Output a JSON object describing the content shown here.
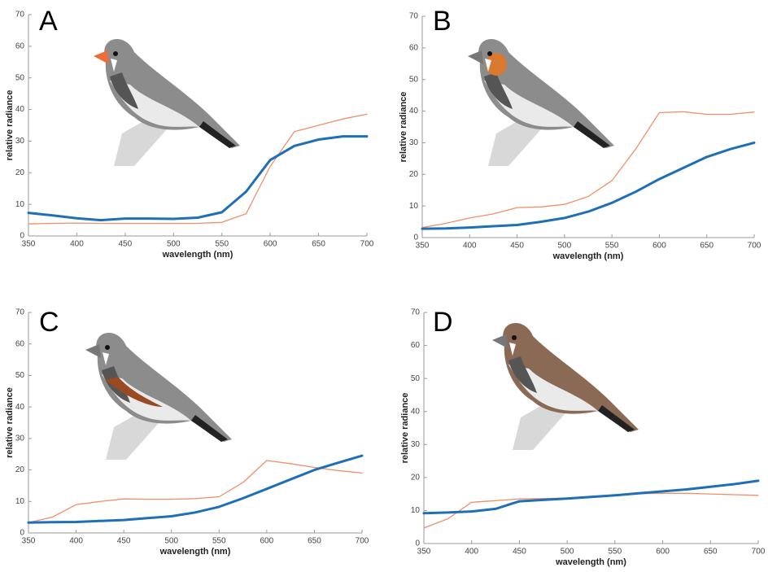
{
  "chart_data": [
    {
      "type": "line",
      "panel_label": "A",
      "xlabel": "wavelength (nm)",
      "ylabel": "relative radiance",
      "x": [
        350,
        375,
        400,
        425,
        450,
        475,
        500,
        525,
        550,
        575,
        600,
        625,
        650,
        675,
        700
      ],
      "xlim": [
        350,
        700
      ],
      "xticks": [
        350,
        400,
        450,
        500,
        550,
        600,
        650,
        700
      ],
      "ylim": [
        0,
        70
      ],
      "yticks": [
        0,
        10,
        20,
        30,
        40,
        50,
        60,
        70
      ],
      "series": [
        {
          "color": "#1f6fb8",
          "values": [
            7.3,
            6.5,
            5.6,
            5.0,
            5.5,
            5.5,
            5.4,
            5.8,
            7.5,
            14,
            24,
            28.5,
            30.5,
            31.5,
            31.5
          ]
        },
        {
          "color": "#f0906a",
          "values": [
            3.8,
            4.0,
            4.1,
            4.0,
            4.0,
            4.0,
            4.0,
            4.0,
            4.3,
            7,
            22,
            33,
            35,
            37,
            38.5
          ]
        }
      ]
    },
    {
      "type": "line",
      "panel_label": "B",
      "xlabel": "wavelength (nm)",
      "ylabel": "relative radiance",
      "x": [
        350,
        375,
        400,
        425,
        450,
        475,
        500,
        525,
        550,
        575,
        600,
        625,
        650,
        675,
        700
      ],
      "xlim": [
        350,
        700
      ],
      "xticks": [
        350,
        400,
        450,
        500,
        550,
        600,
        650,
        700
      ],
      "ylim": [
        0,
        70
      ],
      "yticks": [
        0,
        10,
        20,
        30,
        40,
        50,
        60,
        70
      ],
      "series": [
        {
          "color": "#1f6fb8",
          "values": [
            2.8,
            2.9,
            3.2,
            3.6,
            4.0,
            5.0,
            6.2,
            8.2,
            11,
            14.5,
            18.5,
            22,
            25.5,
            28,
            30
          ]
        },
        {
          "color": "#f0906a",
          "values": [
            3.2,
            4.5,
            6.2,
            7.5,
            9.5,
            9.7,
            10.5,
            13,
            18,
            28,
            39.5,
            39.8,
            39,
            39,
            39.7
          ]
        }
      ]
    },
    {
      "type": "line",
      "panel_label": "C",
      "xlabel": "wavelength (nm)",
      "ylabel": "relative radiance",
      "x": [
        350,
        375,
        400,
        425,
        450,
        475,
        500,
        525,
        550,
        575,
        600,
        625,
        650,
        675,
        700
      ],
      "xlim": [
        350,
        700
      ],
      "xticks": [
        350,
        400,
        450,
        500,
        550,
        600,
        650,
        700
      ],
      "ylim": [
        0,
        70
      ],
      "yticks": [
        0,
        10,
        20,
        30,
        40,
        50,
        60,
        70
      ],
      "series": [
        {
          "color": "#1f6fb8",
          "values": [
            3.3,
            3.4,
            3.5,
            3.8,
            4.1,
            4.7,
            5.3,
            6.5,
            8.3,
            11,
            14,
            17,
            20,
            22.3,
            24.5
          ]
        },
        {
          "color": "#f0906a",
          "values": [
            3.3,
            5,
            9,
            10,
            10.8,
            10.7,
            10.7,
            10.9,
            11.5,
            16,
            23,
            22,
            20.8,
            19.8,
            19
          ]
        }
      ]
    },
    {
      "type": "line",
      "panel_label": "D",
      "xlabel": "wavelength (nm)",
      "ylabel": "relative radiance",
      "x": [
        350,
        375,
        400,
        425,
        450,
        475,
        500,
        525,
        550,
        575,
        600,
        625,
        650,
        675,
        700
      ],
      "xlim": [
        350,
        700
      ],
      "xticks": [
        350,
        400,
        450,
        500,
        550,
        600,
        650,
        700
      ],
      "ylim": [
        0,
        70
      ],
      "yticks": [
        0,
        10,
        20,
        30,
        40,
        50,
        60,
        70
      ],
      "series": [
        {
          "color": "#1f6fb8",
          "values": [
            9.2,
            9.4,
            9.7,
            10.5,
            12.8,
            13.2,
            13.6,
            14.1,
            14.6,
            15.2,
            15.8,
            16.4,
            17.2,
            18,
            19
          ]
        },
        {
          "color": "#f0906a",
          "values": [
            4.7,
            7.5,
            12.5,
            13,
            13.5,
            13.6,
            13.8,
            14.3,
            14.7,
            15.1,
            15.2,
            15.2,
            15,
            14.8,
            14.6
          ]
        }
      ]
    }
  ]
}
